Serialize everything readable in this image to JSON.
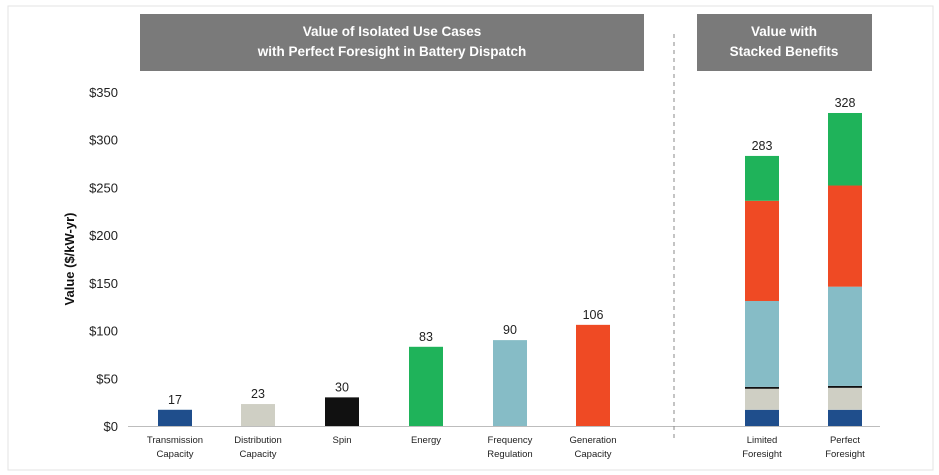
{
  "chart_data": {
    "type": "bar",
    "ylabel": "Value ($/kW-yr)",
    "ylim": [
      0,
      350
    ],
    "yticks": [
      "$0",
      "$50",
      "$100",
      "$150",
      "$200",
      "$250",
      "$300",
      "$350"
    ],
    "grid": false,
    "legend": "none",
    "left_panel": {
      "banner": [
        "Value of Isolated Use Cases",
        "with Perfect Foresight in Battery Dispatch"
      ],
      "bars": [
        {
          "label": [
            "Transmission",
            "Capacity"
          ],
          "value": 17,
          "color": "#1f4e8c"
        },
        {
          "label": [
            "Distribution",
            "Capacity"
          ],
          "value": 23,
          "color": "#cfcfc4"
        },
        {
          "label": [
            "Spin"
          ],
          "value": 30,
          "color": "#111111"
        },
        {
          "label": [
            "Energy"
          ],
          "value": 83,
          "color": "#1fb35a"
        },
        {
          "label": [
            "Frequency",
            "Regulation"
          ],
          "value": 90,
          "color": "#86bcc6"
        },
        {
          "label": [
            "Generation",
            "Capacity"
          ],
          "value": 106,
          "color": "#ef4a24"
        }
      ]
    },
    "right_panel": {
      "banner": [
        "Value with",
        "Stacked Benefits"
      ],
      "series_colors": [
        "#1f4e8c",
        "#cfcfc4",
        "#111111",
        "#86bcc6",
        "#ef4a24",
        "#1fb35a"
      ],
      "bars": [
        {
          "label": [
            "Limited",
            "Foresight"
          ],
          "total": 283,
          "segments": [
            17,
            22,
            2,
            90,
            105,
            47
          ]
        },
        {
          "label": [
            "Perfect",
            "Foresight"
          ],
          "total": 328,
          "segments": [
            17,
            23,
            2,
            104,
            106,
            76
          ]
        }
      ]
    }
  }
}
